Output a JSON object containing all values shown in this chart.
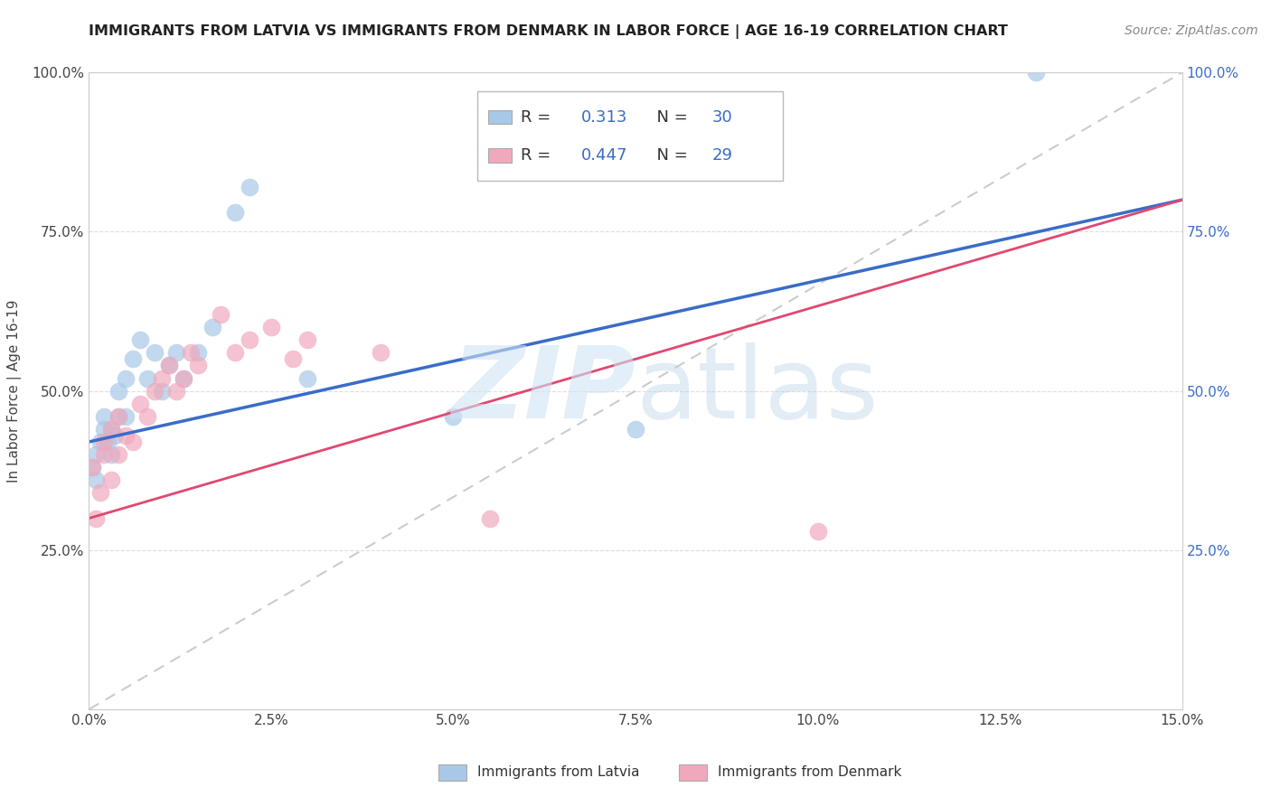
{
  "title": "IMMIGRANTS FROM LATVIA VS IMMIGRANTS FROM DENMARK IN LABOR FORCE | AGE 16-19 CORRELATION CHART",
  "source": "Source: ZipAtlas.com",
  "ylabel": "In Labor Force | Age 16-19",
  "xlim": [
    0.0,
    0.15
  ],
  "ylim": [
    0.0,
    1.0
  ],
  "xticks": [
    0.0,
    0.025,
    0.05,
    0.075,
    0.1,
    0.125,
    0.15
  ],
  "xtick_labels": [
    "0.0%",
    "2.5%",
    "5.0%",
    "7.5%",
    "10.0%",
    "12.5%",
    "15.0%"
  ],
  "yticks": [
    0.0,
    0.25,
    0.5,
    0.75,
    1.0
  ],
  "ytick_labels_left": [
    "",
    "25.0%",
    "50.0%",
    "75.0%",
    "100.0%"
  ],
  "ytick_labels_right": [
    "",
    "25.0%",
    "50.0%",
    "75.0%",
    "100.0%"
  ],
  "latvia_color": "#a8c8e8",
  "denmark_color": "#f0a8bc",
  "latvia_line_color": "#3a6cc8",
  "denmark_line_color": "#e04870",
  "diag_line_color": "#cccccc",
  "R_latvia": 0.313,
  "N_latvia": 30,
  "R_denmark": 0.447,
  "N_denmark": 29,
  "watermark_zip": "ZIP",
  "watermark_atlas": "atlas",
  "legend_labels": [
    "Immigrants from Latvia",
    "Immigrants from Denmark"
  ],
  "latvia_x": [
    0.0005,
    0.001,
    0.001,
    0.0015,
    0.002,
    0.002,
    0.0025,
    0.003,
    0.003,
    0.0035,
    0.004,
    0.004,
    0.005,
    0.005,
    0.006,
    0.007,
    0.008,
    0.009,
    0.01,
    0.011,
    0.012,
    0.013,
    0.015,
    0.017,
    0.02,
    0.022,
    0.03,
    0.05,
    0.075,
    0.13
  ],
  "latvia_y": [
    0.38,
    0.36,
    0.4,
    0.42,
    0.44,
    0.46,
    0.42,
    0.4,
    0.44,
    0.43,
    0.46,
    0.5,
    0.46,
    0.52,
    0.55,
    0.58,
    0.52,
    0.56,
    0.5,
    0.54,
    0.56,
    0.52,
    0.56,
    0.6,
    0.78,
    0.82,
    0.52,
    0.46,
    0.44,
    1.0
  ],
  "denmark_x": [
    0.0005,
    0.001,
    0.0015,
    0.002,
    0.002,
    0.003,
    0.003,
    0.004,
    0.004,
    0.005,
    0.006,
    0.007,
    0.008,
    0.009,
    0.01,
    0.011,
    0.012,
    0.013,
    0.014,
    0.015,
    0.018,
    0.02,
    0.022,
    0.025,
    0.028,
    0.03,
    0.04,
    0.055,
    0.1
  ],
  "denmark_y": [
    0.38,
    0.3,
    0.34,
    0.4,
    0.42,
    0.36,
    0.44,
    0.4,
    0.46,
    0.43,
    0.42,
    0.48,
    0.46,
    0.5,
    0.52,
    0.54,
    0.5,
    0.52,
    0.56,
    0.54,
    0.62,
    0.56,
    0.58,
    0.6,
    0.55,
    0.58,
    0.56,
    0.3,
    0.28
  ],
  "latvia_line_x0": 0.0,
  "latvia_line_y0": 0.42,
  "latvia_line_x1": 0.15,
  "latvia_line_y1": 0.8,
  "denmark_line_x0": 0.0,
  "denmark_line_y0": 0.3,
  "denmark_line_x1": 0.15,
  "denmark_line_y1": 0.8
}
